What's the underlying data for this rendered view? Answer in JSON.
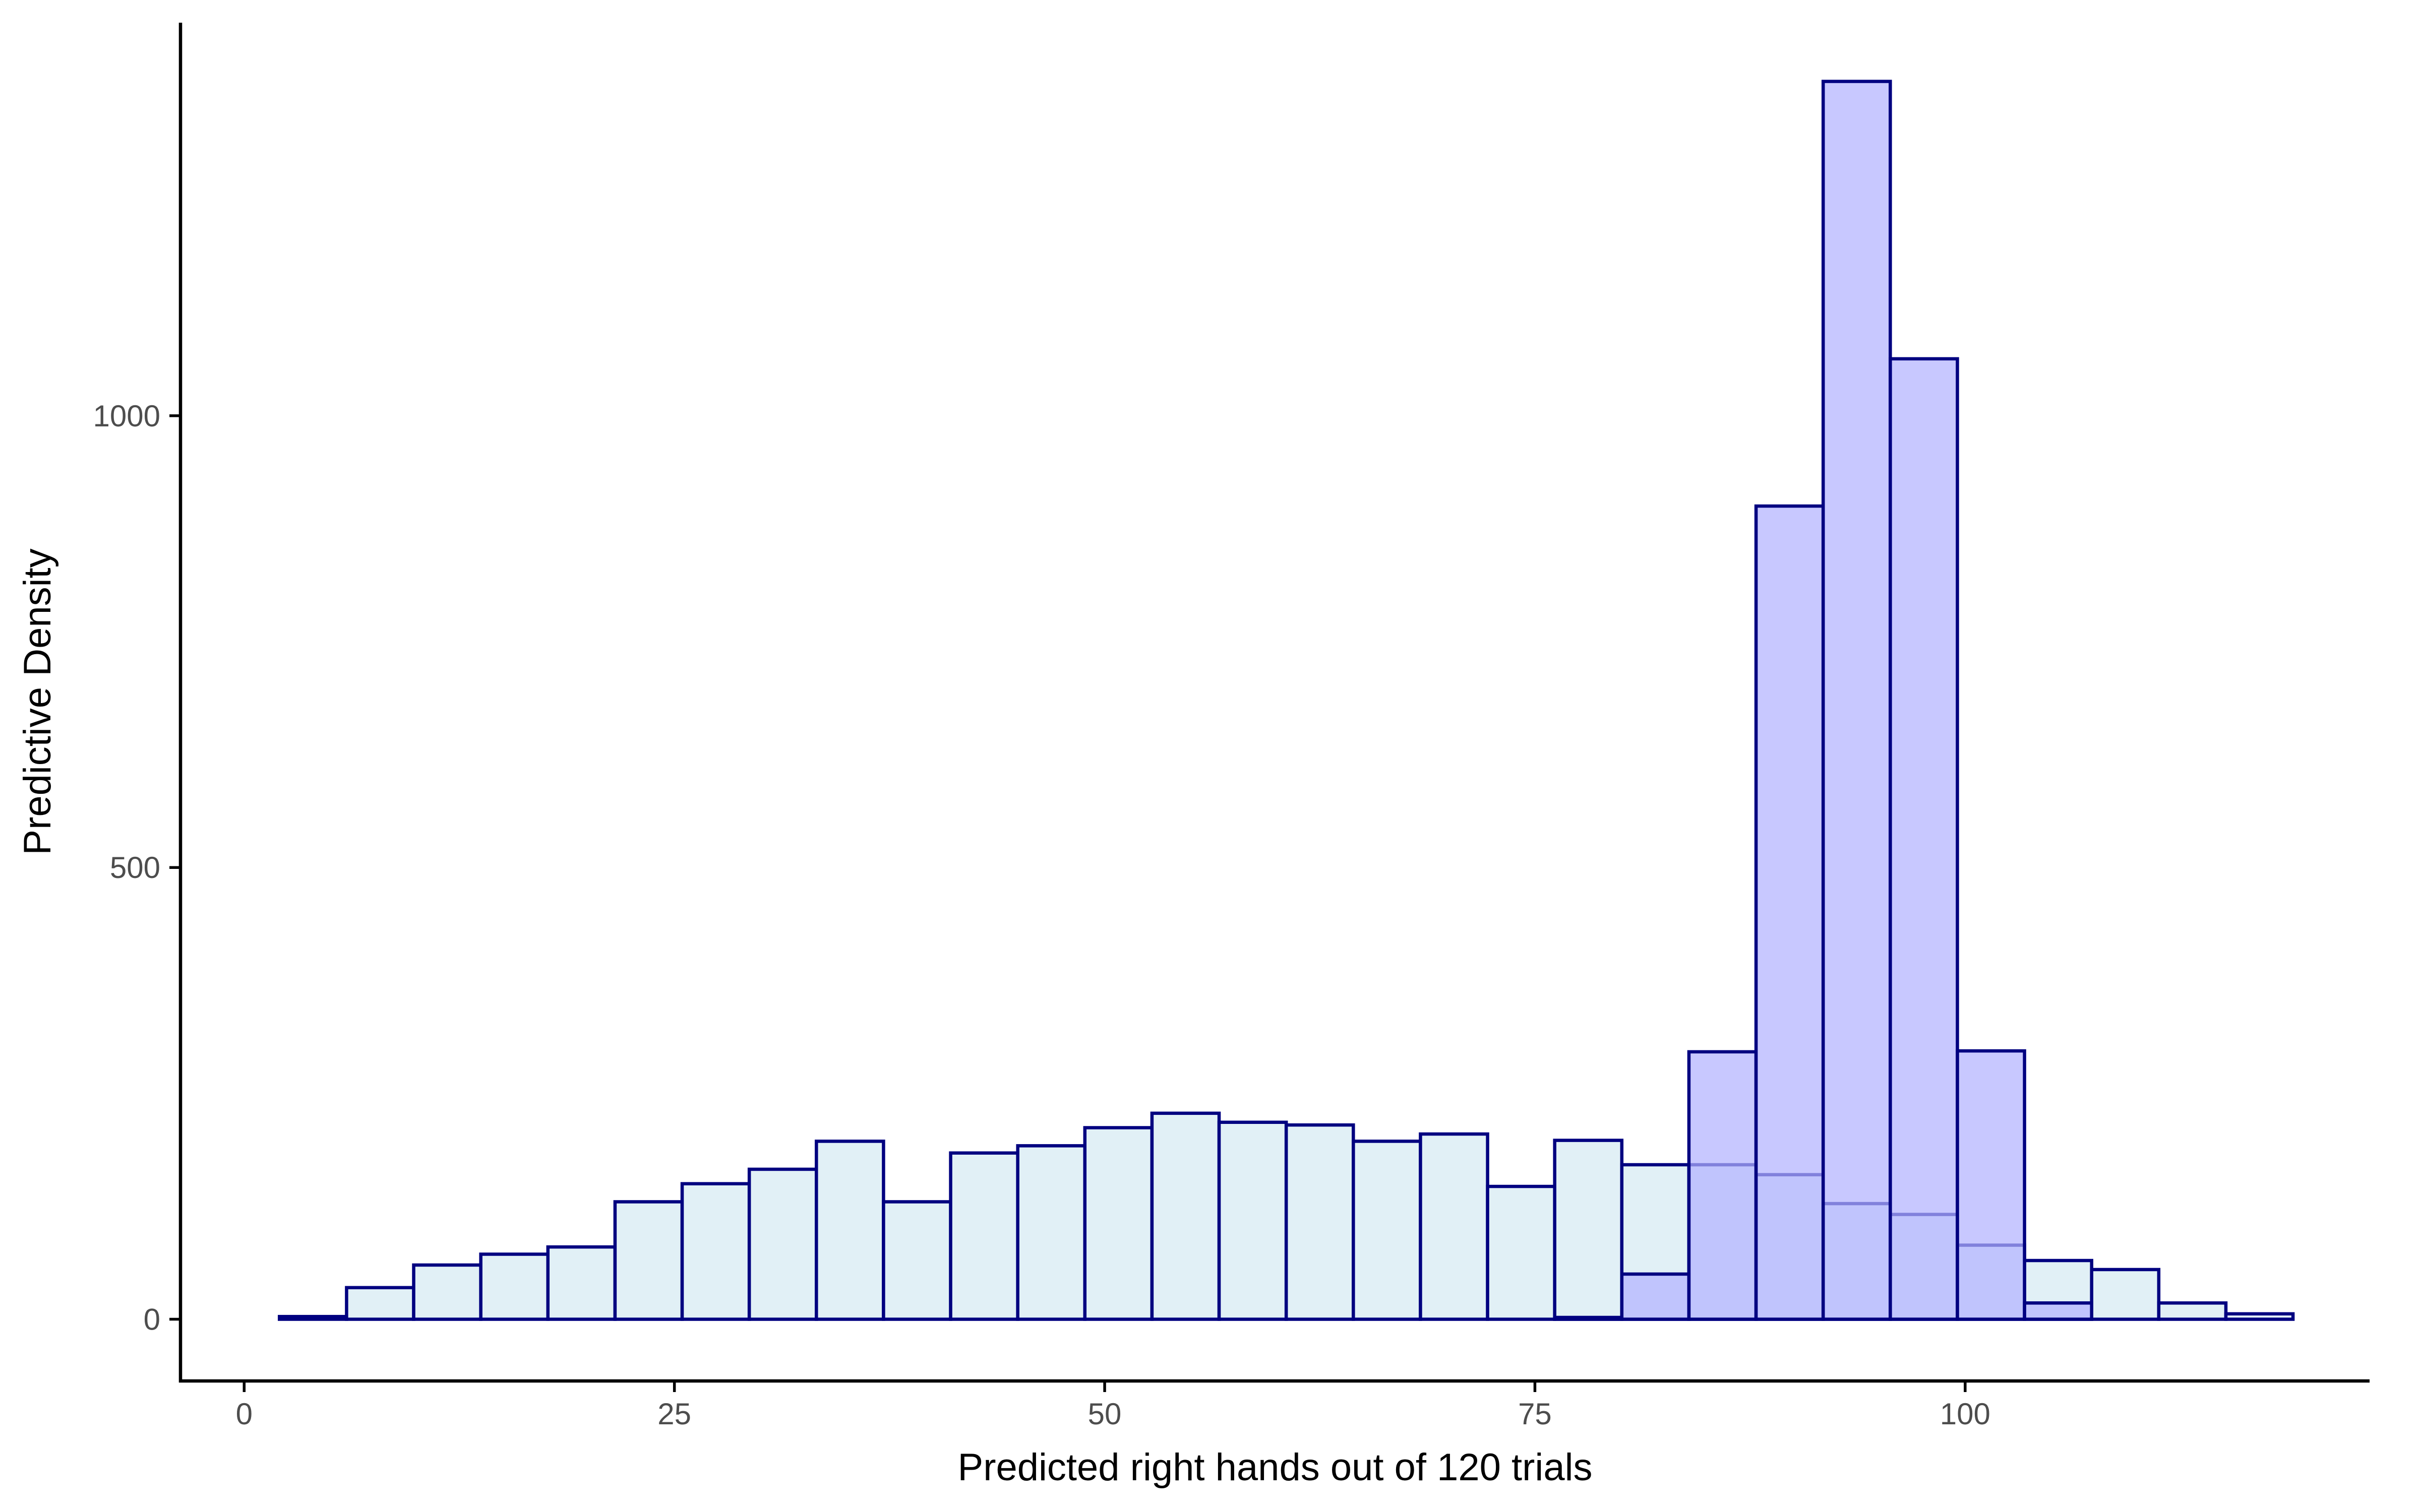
{
  "chart_data": {
    "type": "bar",
    "xlabel": "Predicted right hands out of 120 trials",
    "ylabel": "Predictive Density",
    "xlim": [
      -3.7,
      123.5
    ],
    "ylim": [
      -68.3,
      1435
    ],
    "x_ticks": [
      0,
      25,
      50,
      75,
      100
    ],
    "x_tick_labels": [
      "0",
      "25",
      "50",
      "75",
      "100"
    ],
    "y_ticks": [
      0,
      500,
      1000
    ],
    "y_tick_labels": [
      "0",
      "500",
      "1000"
    ],
    "grid": false,
    "legend": "none",
    "bin_width": 3.9,
    "bin_start": 2.05,
    "colors": {
      "outline": "#000080",
      "prior_fill": "#e1f0f6",
      "posterior_fill": "#b3b3ff",
      "background": "#ffffff"
    },
    "series": [
      {
        "fill": "#e1f0f6",
        "fill_opacity": 1,
        "values": [
          3,
          35,
          60,
          72,
          80,
          130,
          150,
          166,
          197,
          130,
          184,
          192,
          212,
          228,
          218,
          215,
          197,
          205,
          147,
          198,
          171,
          171,
          160,
          128,
          116,
          82,
          65,
          55,
          18,
          6
        ]
      },
      {
        "fill": "#b3b3ff",
        "fill_opacity": 0.72,
        "values": [
          0,
          0,
          0,
          0,
          0,
          0,
          0,
          0,
          0,
          0,
          0,
          0,
          0,
          0,
          0,
          0,
          0,
          0,
          0,
          2,
          50,
          296,
          900,
          1370,
          1063,
          297,
          18,
          0,
          0,
          0
        ]
      }
    ]
  }
}
